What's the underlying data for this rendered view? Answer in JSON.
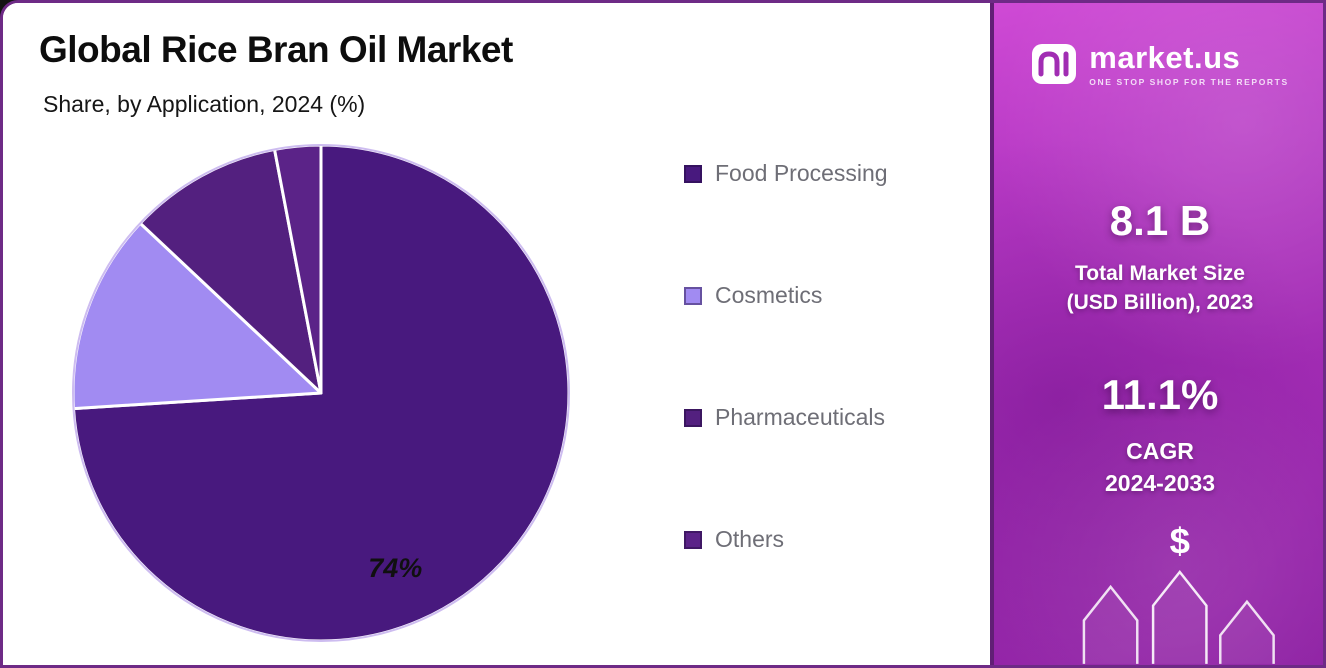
{
  "chart_data": {
    "type": "pie",
    "title": "Global Rice Bran Oil Market",
    "subtitle": "Share, by Application, 2024 (%)",
    "unit": "%",
    "legend_position": "right",
    "start_angle_deg": 0,
    "direction": "clockwise",
    "outline_color": "#cdbcf0",
    "slices": [
      {
        "label": "Food Processing",
        "value": 74,
        "color": "#48197E",
        "value_label": "74%",
        "label_angle_deg": 158,
        "label_radius_frac": 0.8
      },
      {
        "label": "Cosmetics",
        "value": 13,
        "color": "#A18BF2"
      },
      {
        "label": "Pharmaceuticals",
        "value": 10,
        "color": "#53207F"
      },
      {
        "label": "Others",
        "value": 3,
        "color": "#5B2388"
      }
    ]
  },
  "sidebar": {
    "brand": {
      "name": "market.us",
      "tagline": "ONE STOP SHOP FOR THE REPORTS"
    },
    "stat_primary": {
      "value": "8.1 B",
      "label_line1": "Total Market Size",
      "label_line2": "(USD Billion), 2023"
    },
    "stat_secondary": {
      "value": "11.1%",
      "label_line1": "CAGR",
      "label_line2": "2024-2033"
    },
    "currency_symbol": "$"
  }
}
